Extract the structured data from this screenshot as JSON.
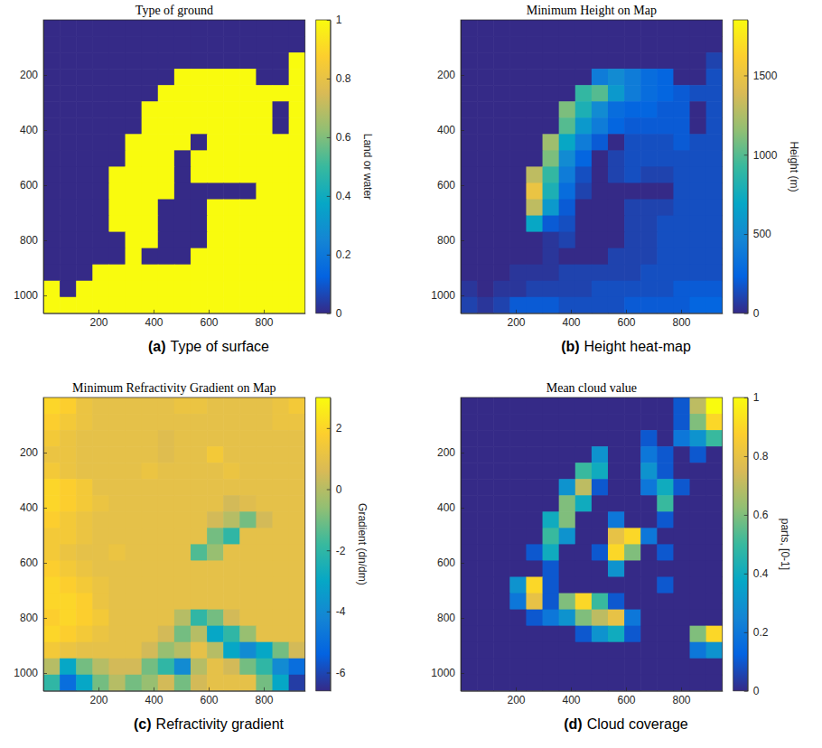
{
  "chart_data": [
    {
      "type": "heatmap",
      "title": "Type of ground",
      "panel": "(a)",
      "caption": "Type of surface",
      "xlim": [
        0,
        950
      ],
      "ylim": [
        0,
        1065
      ],
      "xticks": [
        200,
        400,
        600,
        800
      ],
      "yticks": [
        200,
        400,
        600,
        800,
        1000
      ],
      "colorbar": {
        "label": "Land or water",
        "range": [
          0,
          1
        ],
        "ticks": [
          0,
          0.2,
          0.4,
          0.6,
          0.8,
          1
        ]
      },
      "cells": [
        [
          0,
          0,
          0,
          0,
          0,
          0,
          0,
          0,
          0,
          0,
          0,
          0,
          0,
          0,
          0,
          0
        ],
        [
          0,
          0,
          0,
          0,
          0,
          0,
          0,
          0,
          0,
          0,
          0,
          0,
          0,
          0,
          0,
          0
        ],
        [
          0,
          0,
          0,
          0,
          0,
          0,
          0,
          0,
          0,
          0,
          0,
          0,
          0,
          0,
          0,
          1
        ],
        [
          0,
          0,
          0,
          0,
          0,
          0,
          0,
          0,
          1,
          1,
          1,
          1,
          1,
          0,
          0,
          1
        ],
        [
          0,
          0,
          0,
          0,
          0,
          0,
          0,
          1,
          1,
          1,
          1,
          1,
          1,
          1,
          1,
          1
        ],
        [
          0,
          0,
          0,
          0,
          0,
          0,
          1,
          1,
          1,
          1,
          1,
          1,
          1,
          1,
          0,
          1
        ],
        [
          0,
          0,
          0,
          0,
          0,
          0,
          1,
          1,
          1,
          1,
          1,
          1,
          1,
          1,
          0,
          1
        ],
        [
          0,
          0,
          0,
          0,
          0,
          1,
          1,
          1,
          1,
          0,
          1,
          1,
          1,
          1,
          1,
          1
        ],
        [
          0,
          0,
          0,
          0,
          0,
          1,
          1,
          1,
          0,
          1,
          1,
          1,
          1,
          1,
          1,
          1
        ],
        [
          0,
          0,
          0,
          0,
          1,
          1,
          1,
          1,
          0,
          1,
          1,
          1,
          1,
          1,
          1,
          1
        ],
        [
          0,
          0,
          0,
          0,
          1,
          1,
          1,
          1,
          0,
          0,
          0,
          0,
          0,
          1,
          1,
          1
        ],
        [
          0,
          0,
          0,
          0,
          1,
          1,
          1,
          0,
          0,
          0,
          1,
          1,
          1,
          1,
          1,
          1
        ],
        [
          0,
          0,
          0,
          0,
          1,
          1,
          1,
          0,
          0,
          0,
          1,
          1,
          1,
          1,
          1,
          1
        ],
        [
          0,
          0,
          0,
          0,
          0,
          1,
          1,
          0,
          0,
          0,
          1,
          1,
          1,
          1,
          1,
          1
        ],
        [
          0,
          0,
          0,
          0,
          0,
          1,
          0,
          0,
          0,
          1,
          1,
          1,
          1,
          1,
          1,
          1
        ],
        [
          0,
          0,
          0,
          1,
          1,
          1,
          1,
          1,
          1,
          1,
          1,
          1,
          1,
          1,
          1,
          1
        ],
        [
          1,
          0,
          1,
          1,
          1,
          1,
          1,
          1,
          1,
          1,
          1,
          1,
          1,
          1,
          1,
          1
        ],
        [
          1,
          1,
          1,
          1,
          1,
          1,
          1,
          1,
          1,
          1,
          1,
          1,
          1,
          1,
          1,
          1
        ]
      ]
    },
    {
      "type": "heatmap",
      "title": "Minimum Height on Map",
      "panel": "(b)",
      "caption": "Height heat-map",
      "xlim": [
        0,
        950
      ],
      "ylim": [
        0,
        1065
      ],
      "xticks": [
        200,
        400,
        600,
        800
      ],
      "yticks": [
        200,
        400,
        600,
        800,
        1000
      ],
      "colorbar": {
        "label": "Height (m)",
        "range": [
          0,
          1850
        ],
        "ticks": [
          0,
          500,
          1000,
          1500
        ]
      },
      "cells": [
        [
          0,
          0,
          0,
          0,
          0,
          0,
          0,
          0,
          0,
          0,
          0,
          0,
          0,
          0,
          0,
          0
        ],
        [
          0,
          0,
          0,
          0,
          0,
          0,
          0,
          0,
          0,
          0,
          0,
          0,
          0,
          0,
          0,
          0
        ],
        [
          0,
          0,
          0,
          0,
          0,
          0,
          0,
          0,
          0,
          0,
          0,
          0,
          0,
          0,
          0,
          100
        ],
        [
          0,
          0,
          0,
          0,
          0,
          0,
          0,
          0,
          400,
          500,
          400,
          300,
          250,
          0,
          0,
          150
        ],
        [
          0,
          0,
          0,
          0,
          0,
          0,
          0,
          900,
          1000,
          600,
          400,
          300,
          250,
          200,
          150,
          150
        ],
        [
          0,
          0,
          0,
          0,
          0,
          0,
          1100,
          800,
          500,
          300,
          250,
          250,
          200,
          200,
          0,
          150
        ],
        [
          0,
          0,
          0,
          0,
          0,
          0,
          1000,
          600,
          400,
          250,
          200,
          200,
          200,
          200,
          0,
          150
        ],
        [
          0,
          0,
          0,
          0,
          0,
          1200,
          700,
          400,
          200,
          0,
          150,
          150,
          150,
          200,
          150,
          150
        ],
        [
          0,
          0,
          0,
          0,
          0,
          1100,
          500,
          250,
          0,
          100,
          150,
          150,
          150,
          150,
          150,
          150
        ],
        [
          0,
          0,
          0,
          0,
          1300,
          900,
          400,
          150,
          0,
          100,
          150,
          100,
          100,
          150,
          150,
          150
        ],
        [
          0,
          0,
          0,
          0,
          1500,
          800,
          300,
          100,
          0,
          0,
          0,
          0,
          0,
          150,
          150,
          150
        ],
        [
          0,
          0,
          0,
          0,
          1300,
          600,
          200,
          0,
          0,
          0,
          100,
          100,
          100,
          150,
          150,
          150
        ],
        [
          0,
          0,
          0,
          0,
          700,
          200,
          150,
          0,
          0,
          0,
          100,
          100,
          150,
          150,
          150,
          150
        ],
        [
          0,
          0,
          0,
          0,
          0,
          50,
          100,
          0,
          0,
          0,
          100,
          100,
          150,
          150,
          150,
          150
        ],
        [
          0,
          0,
          0,
          0,
          0,
          50,
          0,
          0,
          0,
          100,
          100,
          100,
          150,
          150,
          150,
          150
        ],
        [
          0,
          0,
          0,
          50,
          50,
          50,
          100,
          100,
          100,
          100,
          100,
          150,
          150,
          150,
          150,
          150
        ],
        [
          50,
          0,
          50,
          50,
          100,
          100,
          100,
          100,
          150,
          150,
          150,
          150,
          150,
          200,
          200,
          200
        ],
        [
          100,
          50,
          100,
          200,
          200,
          200,
          150,
          150,
          150,
          150,
          200,
          200,
          200,
          200,
          250,
          250
        ]
      ]
    },
    {
      "type": "heatmap",
      "title": "Minimum Refractivity Gradient on Map",
      "panel": "(c)",
      "caption": "Refractivity gradient",
      "xlim": [
        0,
        950
      ],
      "ylim": [
        0,
        1065
      ],
      "xticks": [
        200,
        400,
        600,
        800
      ],
      "yticks": [
        200,
        400,
        600,
        800,
        1000
      ],
      "colorbar": {
        "label": "Gradient (dn/dm)",
        "range": [
          -6.6,
          3
        ],
        "ticks": [
          -6,
          -4,
          -2,
          0,
          2
        ]
      },
      "cells": [
        [
          2,
          1.8,
          1.2,
          1,
          1,
          1,
          1,
          1,
          1.2,
          1.2,
          1,
          1,
          1,
          1,
          1.2,
          1.5
        ],
        [
          1.8,
          1.5,
          1.2,
          1,
          1,
          1,
          1,
          1,
          1,
          1,
          1,
          1,
          1,
          1,
          1.2,
          1.2
        ],
        [
          1.5,
          1.2,
          1,
          1,
          1,
          1,
          1,
          0.8,
          1,
          1,
          1,
          1,
          1,
          1,
          1,
          1
        ],
        [
          1.2,
          1.2,
          1,
          1,
          1,
          1,
          1,
          0.8,
          1,
          1,
          1.5,
          1,
          1,
          1,
          1,
          1
        ],
        [
          1.5,
          1.2,
          1,
          1,
          1,
          1,
          1.2,
          1,
          1,
          1,
          1,
          1.2,
          1,
          1,
          1,
          1
        ],
        [
          2,
          1.8,
          1.5,
          1,
          1,
          1,
          1,
          1,
          1,
          1,
          1,
          1,
          1,
          1,
          1,
          1
        ],
        [
          2,
          1.8,
          1.5,
          1.2,
          1,
          1,
          1,
          1,
          1,
          1,
          1,
          0.5,
          0.8,
          1,
          1,
          1
        ],
        [
          1.8,
          1.5,
          1.2,
          1,
          1,
          1,
          1,
          1,
          1,
          1,
          0.5,
          0,
          -1,
          0.5,
          1,
          1
        ],
        [
          1.5,
          1.5,
          1.2,
          1,
          1,
          1,
          1,
          1,
          1,
          1,
          -1,
          -2,
          1,
          1,
          1,
          1
        ],
        [
          1.5,
          1.2,
          1,
          1,
          1.2,
          1,
          1,
          1,
          1,
          -1.5,
          -0.5,
          1,
          1,
          1,
          1,
          1
        ],
        [
          1.8,
          1.5,
          1.2,
          1,
          1,
          1,
          1,
          1,
          1,
          1,
          1,
          1,
          1,
          1,
          1,
          1
        ],
        [
          2,
          1.8,
          1.5,
          1.2,
          1,
          1,
          1,
          1,
          1,
          1,
          1,
          1,
          1,
          1,
          1,
          1
        ],
        [
          2,
          2,
          1.8,
          1.2,
          1,
          1,
          1,
          1,
          1,
          1,
          1,
          1,
          1,
          1,
          1,
          1
        ],
        [
          1.8,
          2,
          1.8,
          1.5,
          1,
          1,
          1,
          1,
          0,
          -2,
          -1,
          0.5,
          1,
          1,
          1,
          1
        ],
        [
          2,
          1.8,
          1.5,
          1.2,
          1,
          1,
          1,
          0.5,
          -1,
          0,
          -3,
          -2,
          -0.5,
          1,
          1,
          1
        ],
        [
          1.5,
          1.2,
          1,
          1,
          1,
          1,
          0.5,
          -0.5,
          0,
          1,
          0,
          -3,
          -4,
          -3,
          -1,
          0.5
        ],
        [
          0,
          -3,
          -1,
          0,
          0.5,
          0.5,
          -1,
          -2,
          -4,
          0,
          1,
          0.5,
          -1,
          -2,
          -4,
          -5
        ],
        [
          -2,
          -5,
          -3,
          -1,
          0,
          -1,
          -0.5,
          0.5,
          -1,
          0.5,
          1,
          1,
          1,
          -1,
          -3,
          -6.2
        ]
      ]
    },
    {
      "type": "heatmap",
      "title": "Mean cloud value",
      "panel": "(d)",
      "caption": "Cloud coverage",
      "xlim": [
        0,
        950
      ],
      "ylim": [
        0,
        1065
      ],
      "xticks": [
        200,
        400,
        600,
        800
      ],
      "yticks": [
        200,
        400,
        600,
        800,
        1000
      ],
      "colorbar": {
        "label": "parts, [0-1]",
        "range": [
          0,
          1
        ],
        "ticks": [
          0,
          0.2,
          0.4,
          0.6,
          0.8,
          1
        ]
      },
      "cells": [
        [
          0,
          0,
          0,
          0,
          0,
          0,
          0,
          0,
          0,
          0,
          0,
          0,
          0,
          0.1,
          0.7,
          1
        ],
        [
          0,
          0,
          0,
          0,
          0,
          0,
          0,
          0,
          0,
          0,
          0,
          0,
          0,
          0.1,
          0.6,
          0.9
        ],
        [
          0,
          0,
          0,
          0,
          0,
          0,
          0,
          0,
          0,
          0,
          0,
          0.1,
          0,
          0.2,
          0.3,
          0.5
        ],
        [
          0,
          0,
          0,
          0,
          0,
          0,
          0,
          0,
          0.3,
          0,
          0,
          0.2,
          0.1,
          0,
          0.1,
          0
        ],
        [
          0,
          0,
          0,
          0,
          0,
          0,
          0,
          0.5,
          0.4,
          0,
          0,
          0.3,
          0.1,
          0,
          0,
          0
        ],
        [
          0,
          0,
          0,
          0,
          0,
          0,
          0.3,
          0.7,
          0.1,
          0,
          0,
          0.2,
          0.4,
          0.1,
          0,
          0
        ],
        [
          0,
          0,
          0,
          0,
          0,
          0,
          0.6,
          0.4,
          0,
          0,
          0,
          0,
          0.5,
          0,
          0,
          0
        ],
        [
          0,
          0,
          0,
          0,
          0,
          0.4,
          0.6,
          0,
          0,
          0.2,
          0,
          0,
          0.1,
          0,
          0,
          0
        ],
        [
          0,
          0,
          0,
          0,
          0,
          0.5,
          0.3,
          0,
          0,
          0.8,
          0.9,
          0.2,
          0,
          0,
          0,
          0
        ],
        [
          0,
          0,
          0,
          0,
          0.1,
          0.4,
          0,
          0,
          0.1,
          0.9,
          0.6,
          0,
          0.1,
          0,
          0,
          0
        ],
        [
          0,
          0,
          0,
          0,
          0,
          0.1,
          0,
          0,
          0,
          0.3,
          0,
          0,
          0,
          0,
          0,
          0
        ],
        [
          0,
          0,
          0,
          0.3,
          0.9,
          0.1,
          0,
          0,
          0,
          0,
          0,
          0,
          0.1,
          0,
          0,
          0
        ],
        [
          0,
          0,
          0,
          0.2,
          0.8,
          0.1,
          0.6,
          0.9,
          0.5,
          0.1,
          0,
          0,
          0,
          0,
          0,
          0
        ],
        [
          0,
          0,
          0,
          0,
          0.1,
          0.2,
          0.3,
          0.6,
          0.7,
          0.8,
          0.2,
          0,
          0,
          0,
          0,
          0
        ],
        [
          0,
          0,
          0,
          0,
          0,
          0,
          0,
          0.1,
          0.3,
          0.4,
          0.1,
          0,
          0,
          0,
          0.6,
          0.9
        ],
        [
          0,
          0,
          0,
          0,
          0,
          0,
          0,
          0,
          0,
          0,
          0,
          0,
          0,
          0,
          0.2,
          0.3
        ],
        [
          0,
          0,
          0,
          0,
          0,
          0,
          0,
          0,
          0,
          0,
          0,
          0,
          0,
          0,
          0,
          0
        ],
        [
          0,
          0,
          0,
          0,
          0,
          0,
          0,
          0,
          0,
          0,
          0,
          0,
          0,
          0,
          0,
          0
        ]
      ]
    }
  ]
}
